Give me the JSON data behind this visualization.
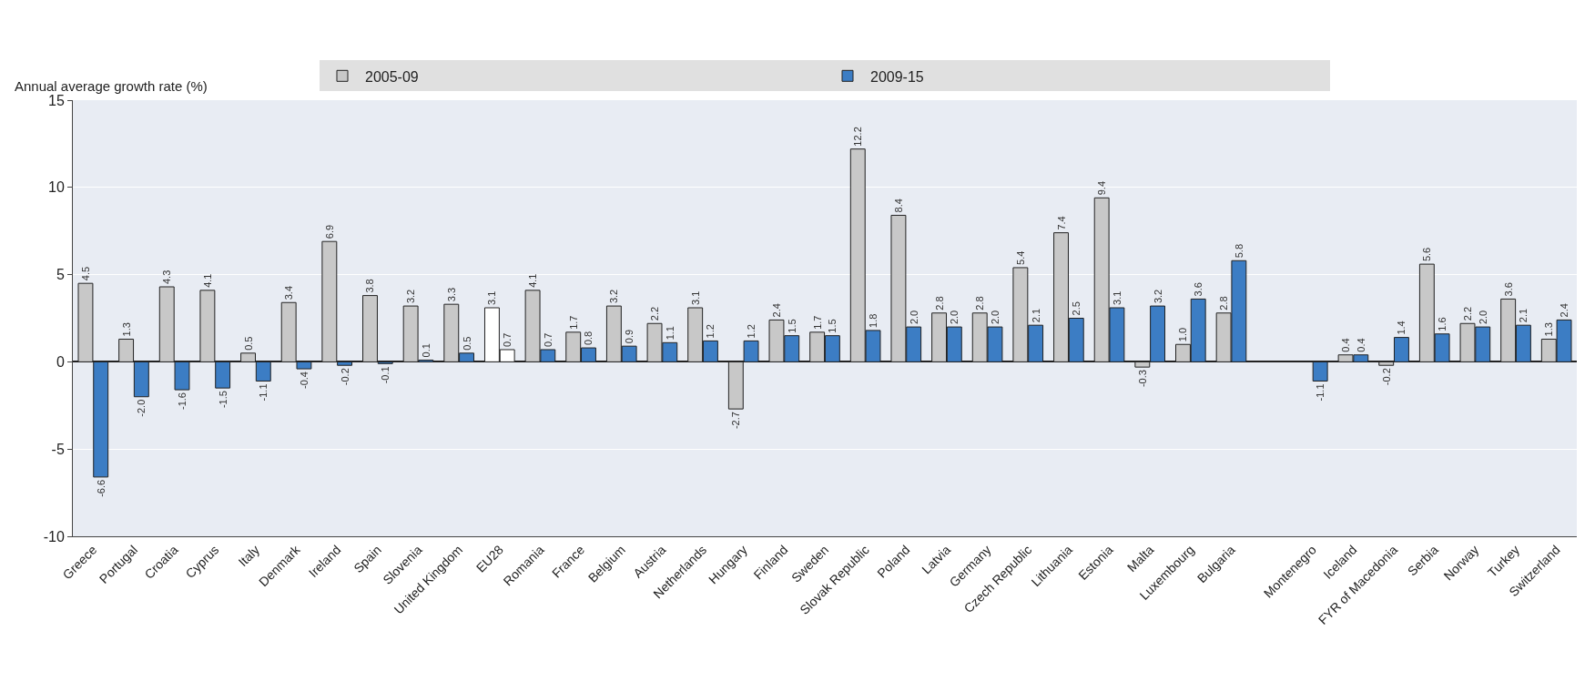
{
  "chart_data": {
    "type": "bar",
    "ylabel": "Annual average growth rate (%)",
    "categories": [
      "Greece",
      "Portugal",
      "Croatia",
      "Cyprus",
      "Italy",
      "Denmark",
      "Ireland",
      "Spain",
      "Slovenia",
      "United Kingdom",
      "EU28",
      "Romania",
      "France",
      "Belgium",
      "Austria",
      "Netherlands",
      "Hungary",
      "Finland",
      "Sweden",
      "Slovak Republic",
      "Poland",
      "Latvia",
      "Germany",
      "Czech Republic",
      "Lithuania",
      "Estonia",
      "Malta",
      "Luxembourg",
      "Bulgaria",
      null,
      "Montenegro",
      "Iceland",
      "FYR of Macedonia",
      "Serbia",
      "Norway",
      "Turkey",
      "Switzerland"
    ],
    "series": [
      {
        "name": "2005-09",
        "colors": [
          "#c8c8c8",
          "#c8c8c8",
          "#c8c8c8",
          "#c8c8c8",
          "#c8c8c8",
          "#c8c8c8",
          "#c8c8c8",
          "#c8c8c8",
          "#c8c8c8",
          "#c8c8c8",
          "#ffffff",
          "#c8c8c8",
          "#c8c8c8",
          "#c8c8c8",
          "#c8c8c8",
          "#c8c8c8",
          "#c8c8c8",
          "#c8c8c8",
          "#c8c8c8",
          "#c8c8c8",
          "#c8c8c8",
          "#c8c8c8",
          "#c8c8c8",
          "#c8c8c8",
          "#c8c8c8",
          "#c8c8c8",
          "#c8c8c8",
          "#c8c8c8",
          "#c8c8c8",
          "#c8c8c8",
          "#c8c8c8",
          "#c8c8c8",
          "#c8c8c8",
          "#c8c8c8",
          "#c8c8c8",
          "#c8c8c8",
          "#c8c8c8"
        ],
        "values": [
          4.5,
          1.3,
          4.3,
          4.1,
          0.5,
          3.4,
          6.9,
          3.8,
          3.2,
          3.3,
          3.1,
          4.1,
          1.7,
          3.2,
          2.2,
          3.1,
          -2.7,
          2.4,
          1.7,
          12.2,
          8.4,
          2.8,
          2.8,
          5.4,
          7.4,
          9.4,
          -0.3,
          1.0,
          2.8,
          null,
          null,
          0.4,
          -0.2,
          5.6,
          2.2,
          3.6,
          1.3
        ],
        "value_labels": [
          "4.5",
          "1.3",
          "4.3",
          "4.1",
          "0.5",
          "3.4",
          "6.9",
          "3.8",
          "3.2",
          "3.3",
          "3.1",
          "4.1",
          "1.7",
          "3.2",
          "2.2",
          "3.1",
          "-2.7",
          "2.4",
          "1.7",
          "12.2",
          "8.4",
          "2.8",
          "2.8",
          "5.4",
          "7.4",
          "9.4",
          "-0.3",
          "1.0",
          "2.8",
          null,
          null,
          "0.4",
          "-0.2",
          "5.6",
          "2.2",
          "3.6",
          "1.3"
        ]
      },
      {
        "name": "2009-15",
        "colors": [
          "#3c7dc4",
          "#3c7dc4",
          "#3c7dc4",
          "#3c7dc4",
          "#3c7dc4",
          "#3c7dc4",
          "#3c7dc4",
          "#3c7dc4",
          "#3c7dc4",
          "#3c7dc4",
          "#ffffff",
          "#3c7dc4",
          "#3c7dc4",
          "#3c7dc4",
          "#3c7dc4",
          "#3c7dc4",
          "#3c7dc4",
          "#3c7dc4",
          "#3c7dc4",
          "#3c7dc4",
          "#3c7dc4",
          "#3c7dc4",
          "#3c7dc4",
          "#3c7dc4",
          "#3c7dc4",
          "#3c7dc4",
          "#3c7dc4",
          "#3c7dc4",
          "#3c7dc4",
          "#3c7dc4",
          "#3c7dc4",
          "#3c7dc4",
          "#3c7dc4",
          "#3c7dc4",
          "#3c7dc4",
          "#3c7dc4",
          "#3c7dc4"
        ],
        "values": [
          -6.6,
          -2.0,
          -1.6,
          -1.5,
          -1.1,
          -0.4,
          -0.2,
          -0.1,
          0.1,
          0.5,
          0.7,
          0.7,
          0.8,
          0.9,
          1.1,
          1.2,
          1.2,
          1.5,
          1.5,
          1.8,
          2.0,
          2.0,
          2.0,
          2.1,
          2.5,
          3.1,
          3.2,
          3.6,
          5.8,
          null,
          -1.1,
          0.4,
          1.4,
          1.6,
          2.0,
          2.1,
          2.4
        ],
        "value_labels": [
          "-6.6",
          "-2.0",
          "-1.6",
          "-1.5",
          "-1.1",
          "-0.4",
          "-0.2",
          "-0.1",
          "0.1",
          "0.5",
          "0.7",
          "0.7",
          "0.8",
          "0.9",
          "1.1",
          "1.2",
          "1.2",
          "1.5",
          "1.5",
          "1.8",
          "2.0",
          "2.0",
          "2.0",
          "2.1",
          "2.5",
          "3.1",
          "3.2",
          "3.6",
          "5.8",
          null,
          "-1.1",
          "0.4",
          "1.4",
          "1.6",
          "2.0",
          "2.1",
          "2.4"
        ]
      }
    ],
    "ylim": [
      -10,
      15
    ],
    "yticks": [
      -10,
      -5,
      0,
      5,
      10,
      15
    ],
    "grid": "y",
    "legend": "top"
  }
}
